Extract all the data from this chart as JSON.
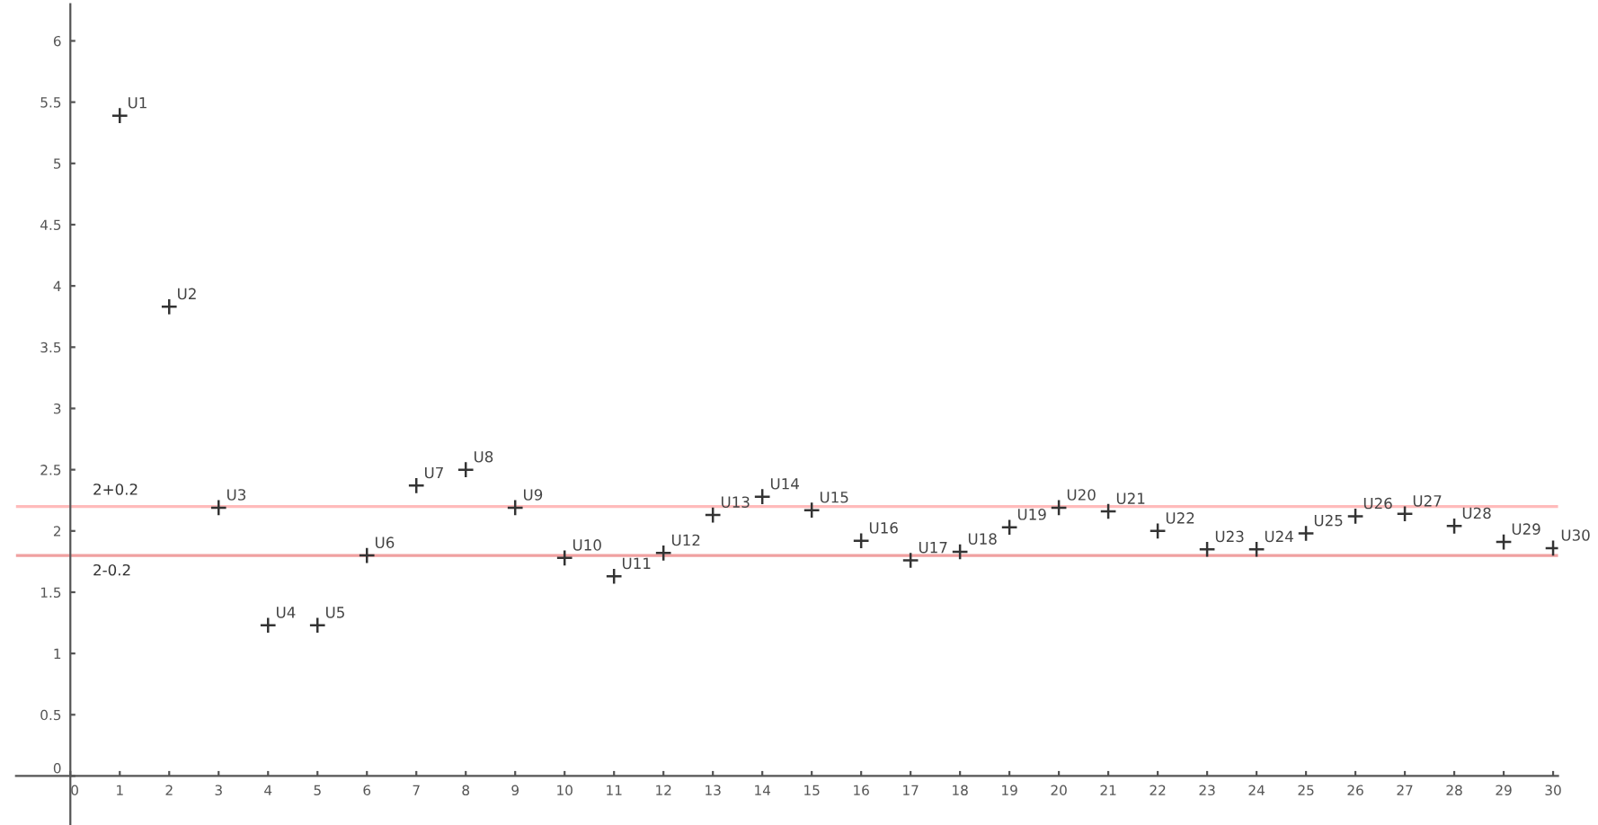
{
  "chart_data": {
    "type": "scatter",
    "marker": "cross",
    "grid": false,
    "legend": false,
    "x": [
      1,
      2,
      3,
      4,
      5,
      6,
      7,
      8,
      9,
      10,
      11,
      12,
      13,
      14,
      15,
      16,
      17,
      18,
      19,
      20,
      21,
      22,
      23,
      24,
      25,
      26,
      27,
      28,
      29,
      30
    ],
    "series": [
      {
        "color": "#333333",
        "values": [
          5.39,
          3.83,
          2.19,
          1.23,
          1.23,
          1.8,
          2.37,
          2.5,
          2.19,
          1.78,
          1.63,
          1.82,
          2.13,
          2.28,
          2.17,
          1.92,
          1.76,
          1.83,
          2.03,
          2.19,
          2.16,
          2.0,
          1.85,
          1.85,
          1.98,
          2.12,
          2.14,
          2.04,
          1.91,
          1.86
        ]
      }
    ],
    "xlim": [
      -1.1,
      30.1
    ],
    "ylim": [
      -0.4,
      6.3
    ],
    "xticks": [
      0,
      1,
      2,
      3,
      4,
      5,
      6,
      7,
      8,
      9,
      10,
      11,
      12,
      13,
      14,
      15,
      16,
      17,
      18,
      19,
      20,
      21,
      22,
      23,
      24,
      25,
      26,
      27,
      28,
      29,
      30
    ],
    "yticks": [
      0,
      0.5,
      1,
      1.5,
      2,
      2.5,
      3,
      3.5,
      4,
      4.5,
      5,
      5.5,
      6
    ],
    "ref_lines": [
      {
        "axis": "y",
        "value": 2.2,
        "label": "2+0.2",
        "color": "#ffbbbb"
      },
      {
        "axis": "y",
        "value": 1.8,
        "label": "2-0.2",
        "color": "#f0a0a0"
      }
    ],
    "annotations": [
      {
        "text": "U1",
        "x": 1,
        "y": 5.39
      },
      {
        "text": "U2",
        "x": 2,
        "y": 3.83
      },
      {
        "text": "U3",
        "x": 3,
        "y": 2.19
      },
      {
        "text": "U4",
        "x": 4,
        "y": 1.23
      },
      {
        "text": "U5",
        "x": 5,
        "y": 1.23
      },
      {
        "text": "U6",
        "x": 6,
        "y": 1.8
      },
      {
        "text": "U7",
        "x": 7,
        "y": 2.37
      },
      {
        "text": "U8",
        "x": 8,
        "y": 2.5
      },
      {
        "text": "U9",
        "x": 9,
        "y": 2.19
      },
      {
        "text": "U10",
        "x": 10,
        "y": 1.78
      },
      {
        "text": "U11",
        "x": 11,
        "y": 1.63
      },
      {
        "text": "U12",
        "x": 12,
        "y": 1.82
      },
      {
        "text": "U13",
        "x": 13,
        "y": 2.13
      },
      {
        "text": "U14",
        "x": 14,
        "y": 2.28
      },
      {
        "text": "U15",
        "x": 15,
        "y": 2.17
      },
      {
        "text": "U16",
        "x": 16,
        "y": 1.92
      },
      {
        "text": "U17",
        "x": 17,
        "y": 1.76
      },
      {
        "text": "U18",
        "x": 18,
        "y": 1.83
      },
      {
        "text": "U19",
        "x": 19,
        "y": 2.03
      },
      {
        "text": "U20",
        "x": 20,
        "y": 2.19
      },
      {
        "text": "U21",
        "x": 21,
        "y": 2.16
      },
      {
        "text": "U22",
        "x": 22,
        "y": 2.0
      },
      {
        "text": "U23",
        "x": 23,
        "y": 1.85
      },
      {
        "text": "U24",
        "x": 24,
        "y": 1.85
      },
      {
        "text": "U25",
        "x": 25,
        "y": 1.98
      },
      {
        "text": "U26",
        "x": 26,
        "y": 2.12
      },
      {
        "text": "U27",
        "x": 27,
        "y": 2.14
      },
      {
        "text": "U28",
        "x": 28,
        "y": 2.04
      },
      {
        "text": "U29",
        "x": 29,
        "y": 1.91
      },
      {
        "text": "U30",
        "x": 30,
        "y": 1.86
      }
    ]
  }
}
